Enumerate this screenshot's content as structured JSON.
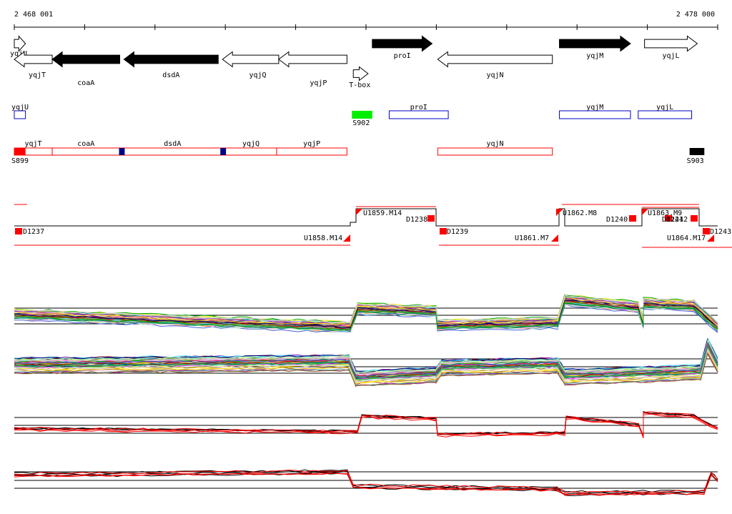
{
  "ruler": {
    "start_label": "2 468 001",
    "end_label": "2 478 000",
    "start": 2468001,
    "end": 2478000
  },
  "genes": [
    {
      "name": "yqjU",
      "start": 2468001,
      "end": 2468160,
      "strand": "+",
      "filled": false,
      "lane": "top"
    },
    {
      "name": "yqjT",
      "start": 2468001,
      "end": 2468540,
      "strand": "-",
      "filled": false,
      "lane": "bottom"
    },
    {
      "name": "coaA",
      "start": 2468540,
      "end": 2469500,
      "strand": "-",
      "filled": true,
      "lane": "bottom"
    },
    {
      "name": "dsdA",
      "start": 2469560,
      "end": 2470900,
      "strand": "-",
      "filled": true,
      "lane": "bottom"
    },
    {
      "name": "yqjQ",
      "start": 2470960,
      "end": 2471760,
      "strand": "-",
      "filled": false,
      "lane": "bottom"
    },
    {
      "name": "yqjP",
      "start": 2471760,
      "end": 2472730,
      "strand": "-",
      "filled": false,
      "lane": "bottom"
    },
    {
      "name": "T-box",
      "start": 2472820,
      "end": 2473030,
      "strand": "+",
      "filled": false,
      "lane": "tbox"
    },
    {
      "name": "proI",
      "start": 2473090,
      "end": 2473940,
      "strand": "+",
      "filled": true,
      "lane": "top"
    },
    {
      "name": "yqjN",
      "start": 2474020,
      "end": 2475650,
      "strand": "-",
      "filled": false,
      "lane": "bottom"
    },
    {
      "name": "yqjM",
      "start": 2475750,
      "end": 2476760,
      "strand": "+",
      "filled": true,
      "lane": "top"
    },
    {
      "name": "yqjL",
      "start": 2476960,
      "end": 2477710,
      "strand": "+",
      "filled": false,
      "lane": "top"
    }
  ],
  "blue_track": [
    {
      "label": "yqjU",
      "start": 2468001,
      "end": 2468160,
      "label_pos": "above"
    },
    {
      "label": "proI",
      "start": 2473330,
      "end": 2474170,
      "label_pos": "above"
    },
    {
      "label": "yqjM",
      "start": 2475750,
      "end": 2476760,
      "label_pos": "above"
    },
    {
      "label": "yqjL",
      "start": 2476870,
      "end": 2477630,
      "label_pos": "above"
    }
  ],
  "green_segments": [
    {
      "label": "S902",
      "start": 2472800,
      "end": 2473090
    }
  ],
  "red_track": {
    "boxes": [
      {
        "label": "yqjT",
        "start": 2468001,
        "end": 2468540
      },
      {
        "label": "coaA",
        "start": 2468540,
        "end": 2469500
      },
      {
        "label": "dsdA",
        "start": 2469500,
        "end": 2471000
      },
      {
        "label": "yqjQ",
        "start": 2471000,
        "end": 2471730
      },
      {
        "label": "yqjP",
        "start": 2471730,
        "end": 2472730
      },
      {
        "label": "yqjN",
        "start": 2474020,
        "end": 2475650
      }
    ],
    "filled_red": [
      {
        "label": "S899",
        "start": 2468001,
        "end": 2468160
      }
    ],
    "navy": [
      {
        "start": 2469490,
        "end": 2469570
      },
      {
        "start": 2470930,
        "end": 2471010
      }
    ],
    "black": [
      {
        "label": "S903",
        "start": 2477600,
        "end": 2477810
      }
    ]
  },
  "transcripts": {
    "labels": [
      "D1237",
      "U1858.M14",
      "U1859.M14",
      "D1238",
      "D1239",
      "U1861.M7",
      "U1862.M8",
      "U1863.M9",
      "D1240",
      "D1241",
      "D1242",
      "U1864.M17",
      "D1243"
    ]
  },
  "colors": {
    "red": "#ff0000",
    "navy": "#000080",
    "blue": "#0000cc",
    "green": "#00ee00",
    "black": "#000000"
  }
}
